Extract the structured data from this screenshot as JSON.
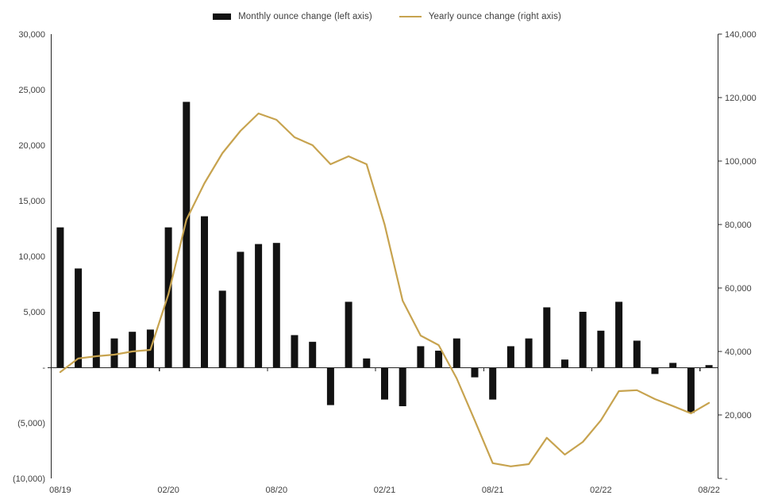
{
  "page": {
    "background": "#FFFFFF"
  },
  "chart_data": {
    "type": "combo",
    "title": "",
    "legend_position": "top",
    "grid": false,
    "categories": [
      "08/19",
      "09/19",
      "10/19",
      "11/19",
      "12/19",
      "01/20",
      "02/20",
      "03/20",
      "04/20",
      "05/20",
      "06/20",
      "07/20",
      "08/20",
      "09/20",
      "10/20",
      "11/20",
      "12/20",
      "01/21",
      "02/21",
      "03/21",
      "04/21",
      "05/21",
      "06/21",
      "07/21",
      "08/21",
      "09/21",
      "10/21",
      "11/21",
      "12/21",
      "01/22",
      "02/22",
      "03/22",
      "04/22",
      "05/22",
      "06/22",
      "07/22",
      "08/22"
    ],
    "x_tick_labels": [
      "08/19",
      "02/20",
      "08/20",
      "02/21",
      "08/21",
      "02/22",
      "08/22"
    ],
    "left_axis": {
      "min": -10000,
      "max": 30000,
      "step": 5000,
      "tick_labels": [
        "30,000",
        "25,000",
        "20,000",
        "15,000",
        "10,000",
        "5,000",
        "-",
        "(5,000)",
        "(10,000)"
      ]
    },
    "right_axis": {
      "min": 0,
      "max": 140000,
      "step": 20000,
      "tick_labels": [
        "140,000",
        "120,000",
        "100,000",
        "80,000",
        "60,000",
        "40,000",
        "20,000",
        "-"
      ]
    },
    "series": [
      {
        "name": "Monthly ounce change (left axis)",
        "type": "bar",
        "axis": "left",
        "color": "#121212",
        "values": [
          12600,
          8900,
          5000,
          2600,
          3200,
          3400,
          12600,
          23900,
          13600,
          6900,
          10400,
          11100,
          11200,
          2900,
          2300,
          -3400,
          5900,
          800,
          -2900,
          -3500,
          1900,
          1500,
          2600,
          -900,
          -2900,
          1900,
          2600,
          5400,
          700,
          5000,
          3300,
          5900,
          2400,
          -600,
          400,
          -4100,
          200
        ]
      },
      {
        "name": "Yearly ounce change (right axis)",
        "type": "line",
        "axis": "right",
        "color": "#C7A34F",
        "values": [
          33500,
          37800,
          38500,
          39000,
          40000,
          40500,
          58000,
          81500,
          93000,
          102500,
          109500,
          115000,
          113000,
          107500,
          105000,
          99000,
          101500,
          99000,
          80000,
          56000,
          45000,
          42000,
          31500,
          18300,
          4800,
          3800,
          4500,
          12800,
          7500,
          11500,
          18300,
          27500,
          27800,
          25000,
          22800,
          20500,
          23800
        ]
      }
    ],
    "colors": {
      "axis_line": "#262626",
      "tick_text": "#404040"
    }
  }
}
